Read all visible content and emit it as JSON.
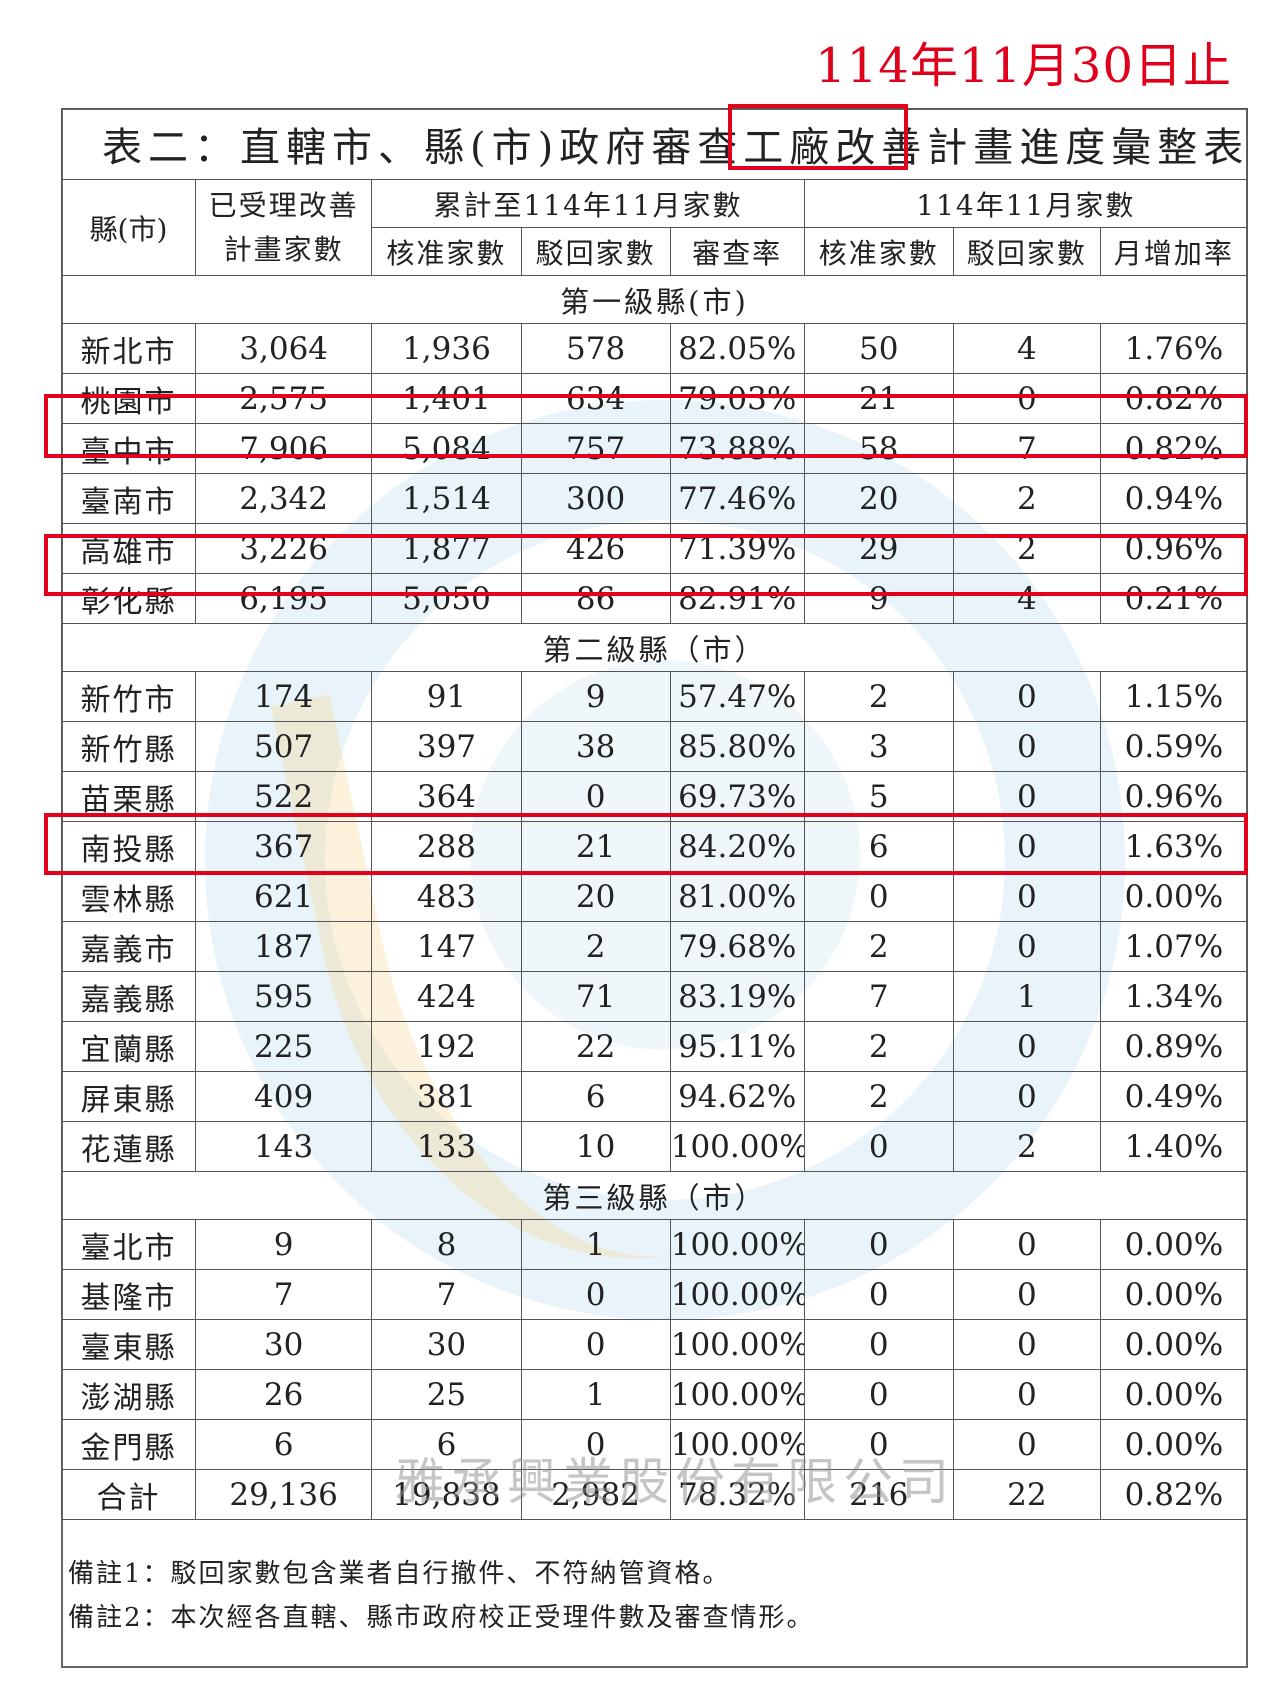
{
  "date_note": "114年11月30日止",
  "title": "表二：直轄市、縣(市)政府審查工廠改善計畫進度彙整表",
  "headers": {
    "city": "縣(市)",
    "accepted": "已受理改善計畫家數",
    "cumulative_group": "累計至114年11月家數",
    "monthly_group": "114年11月家數",
    "approved": "核准家數",
    "rejected": "駁回家數",
    "review_rate": "審查率",
    "month_approved": "核准家數",
    "month_rejected": "駁回家數",
    "month_rate": "月增加率"
  },
  "sections": [
    {
      "label": "第一級縣(市)",
      "rows": [
        [
          "新北市",
          "3,064",
          "1,936",
          "578",
          "82.05%",
          "50",
          "4",
          "1.76%"
        ],
        [
          "桃園市",
          "2,575",
          "1,401",
          "634",
          "79.03%",
          "21",
          "0",
          "0.82%"
        ],
        [
          "臺中市",
          "7,906",
          "5,084",
          "757",
          "73.88%",
          "58",
          "7",
          "0.82%"
        ],
        [
          "臺南市",
          "2,342",
          "1,514",
          "300",
          "77.46%",
          "20",
          "2",
          "0.94%"
        ],
        [
          "高雄市",
          "3,226",
          "1,877",
          "426",
          "71.39%",
          "29",
          "2",
          "0.96%"
        ],
        [
          "彰化縣",
          "6,195",
          "5,050",
          "86",
          "82.91%",
          "9",
          "4",
          "0.21%"
        ]
      ]
    },
    {
      "label": "第二級縣（市）",
      "rows": [
        [
          "新竹市",
          "174",
          "91",
          "9",
          "57.47%",
          "2",
          "0",
          "1.15%"
        ],
        [
          "新竹縣",
          "507",
          "397",
          "38",
          "85.80%",
          "3",
          "0",
          "0.59%"
        ],
        [
          "苗栗縣",
          "522",
          "364",
          "0",
          "69.73%",
          "5",
          "0",
          "0.96%"
        ],
        [
          "南投縣",
          "367",
          "288",
          "21",
          "84.20%",
          "6",
          "0",
          "1.63%"
        ],
        [
          "雲林縣",
          "621",
          "483",
          "20",
          "81.00%",
          "0",
          "0",
          "0.00%"
        ],
        [
          "嘉義市",
          "187",
          "147",
          "2",
          "79.68%",
          "2",
          "0",
          "1.07%"
        ],
        [
          "嘉義縣",
          "595",
          "424",
          "71",
          "83.19%",
          "7",
          "1",
          "1.34%"
        ],
        [
          "宜蘭縣",
          "225",
          "192",
          "22",
          "95.11%",
          "2",
          "0",
          "0.89%"
        ],
        [
          "屏東縣",
          "409",
          "381",
          "6",
          "94.62%",
          "2",
          "0",
          "0.49%"
        ],
        [
          "花蓮縣",
          "143",
          "133",
          "10",
          "100.00%",
          "0",
          "2",
          "1.40%"
        ]
      ]
    },
    {
      "label": "第三級縣（市）",
      "rows": [
        [
          "臺北市",
          "9",
          "8",
          "1",
          "100.00%",
          "0",
          "0",
          "0.00%"
        ],
        [
          "基隆市",
          "7",
          "7",
          "0",
          "100.00%",
          "0",
          "0",
          "0.00%"
        ],
        [
          "臺東縣",
          "30",
          "30",
          "0",
          "100.00%",
          "0",
          "0",
          "0.00%"
        ],
        [
          "澎湖縣",
          "26",
          "25",
          "1",
          "100.00%",
          "0",
          "0",
          "0.00%"
        ],
        [
          "金門縣",
          "6",
          "6",
          "0",
          "100.00%",
          "0",
          "0",
          "0.00%"
        ]
      ]
    }
  ],
  "total": [
    "合計",
    "29,136",
    "19,838",
    "2,982",
    "78.32%",
    "216",
    "22",
    "0.82%"
  ],
  "notes": [
    "備註1：駁回家數包含業者自行撤件、不符納管資格。",
    "備註2：本次經各直轄、縣市政府校正受理件數及審查情形。"
  ],
  "watermark_text": "雅承興業股份有限公司",
  "highlight_color": "#e2001a"
}
